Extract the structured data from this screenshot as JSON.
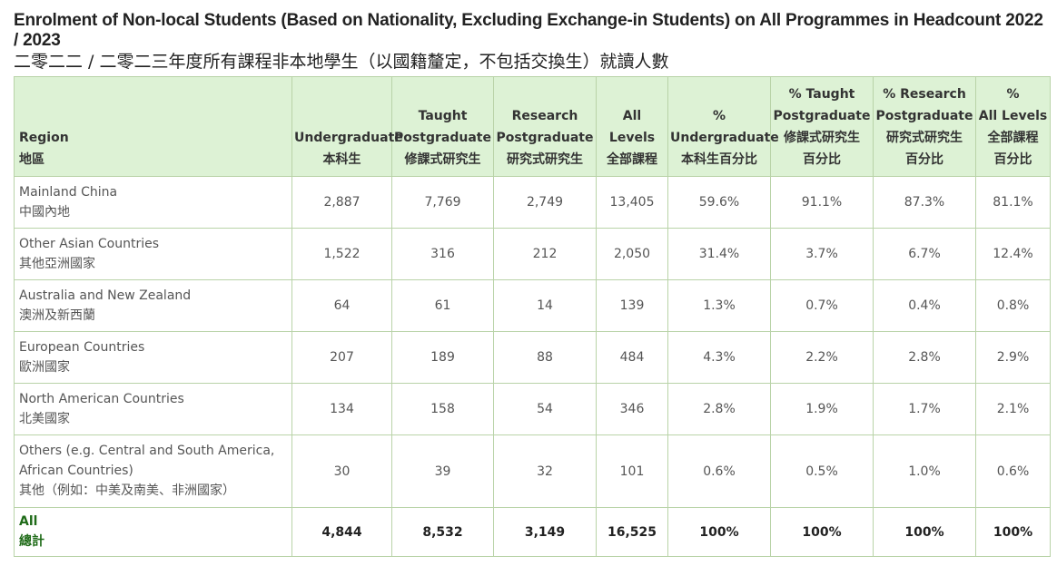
{
  "title": {
    "en": "Enrolment of Non-local Students (Based on Nationality, Excluding Exchange-in Students) on All Programmes in Headcount 2022 / 2023",
    "zh": "二零二二 / 二零二三年度所有課程非本地學生（以國籍釐定，不包括交換生）就讀人數"
  },
  "headers": [
    {
      "en": [
        "Region"
      ],
      "zh": "地區"
    },
    {
      "en": [
        "Undergraduate"
      ],
      "zh": "本科生"
    },
    {
      "en": [
        "Taught",
        "Postgraduate"
      ],
      "zh": "修課式研究生"
    },
    {
      "en": [
        "Research",
        "Postgraduate"
      ],
      "zh": "研究式研究生"
    },
    {
      "en": [
        "All Levels"
      ],
      "zh": "全部課程"
    },
    {
      "en": [
        "%",
        "Undergraduate"
      ],
      "zh": "本科生百分比"
    },
    {
      "en": [
        "% Taught",
        "Postgraduate"
      ],
      "zh": "修課式研究生",
      "zh2": "百分比"
    },
    {
      "en": [
        "% Research",
        "Postgraduate"
      ],
      "zh": "研究式研究生",
      "zh2": "百分比"
    },
    {
      "en": [
        "%",
        "All Levels"
      ],
      "zh": "全部課程",
      "zh2": "百分比"
    }
  ],
  "rows": [
    {
      "en": [
        "Mainland China"
      ],
      "zh": "中國內地",
      "values": [
        "2,887",
        "7,769",
        "2,749",
        "13,405",
        "59.6%",
        "91.1%",
        "87.3%",
        "81.1%"
      ]
    },
    {
      "en": [
        "Other Asian Countries"
      ],
      "zh": "其他亞洲國家",
      "values": [
        "1,522",
        "316",
        "212",
        "2,050",
        "31.4%",
        "3.7%",
        "6.7%",
        "12.4%"
      ]
    },
    {
      "en": [
        "Australia and New Zealand"
      ],
      "zh": "澳洲及新西蘭",
      "values": [
        "64",
        "61",
        "14",
        "139",
        "1.3%",
        "0.7%",
        "0.4%",
        "0.8%"
      ]
    },
    {
      "en": [
        "European Countries"
      ],
      "zh": "歐洲國家",
      "values": [
        "207",
        "189",
        "88",
        "484",
        "4.3%",
        "2.2%",
        "2.8%",
        "2.9%"
      ]
    },
    {
      "en": [
        "North American Countries"
      ],
      "zh": "北美國家",
      "values": [
        "134",
        "158",
        "54",
        "346",
        "2.8%",
        "1.9%",
        "1.7%",
        "2.1%"
      ]
    },
    {
      "en": [
        "Others (e.g. Central and South America,",
        "African Countries)"
      ],
      "zh": "其他（例如：中美及南美、非洲國家）",
      "values": [
        "30",
        "39",
        "32",
        "101",
        "0.6%",
        "0.5%",
        "1.0%",
        "0.6%"
      ]
    }
  ],
  "total": {
    "en": "All",
    "zh": "總計",
    "values": [
      "4,844",
      "8,532",
      "3,149",
      "16,525",
      "100%",
      "100%",
      "100%",
      "100%"
    ]
  },
  "colors": {
    "header_bg": "#ddf2d5",
    "border": "#b9d3a8",
    "total_label": "#1f6b18"
  }
}
